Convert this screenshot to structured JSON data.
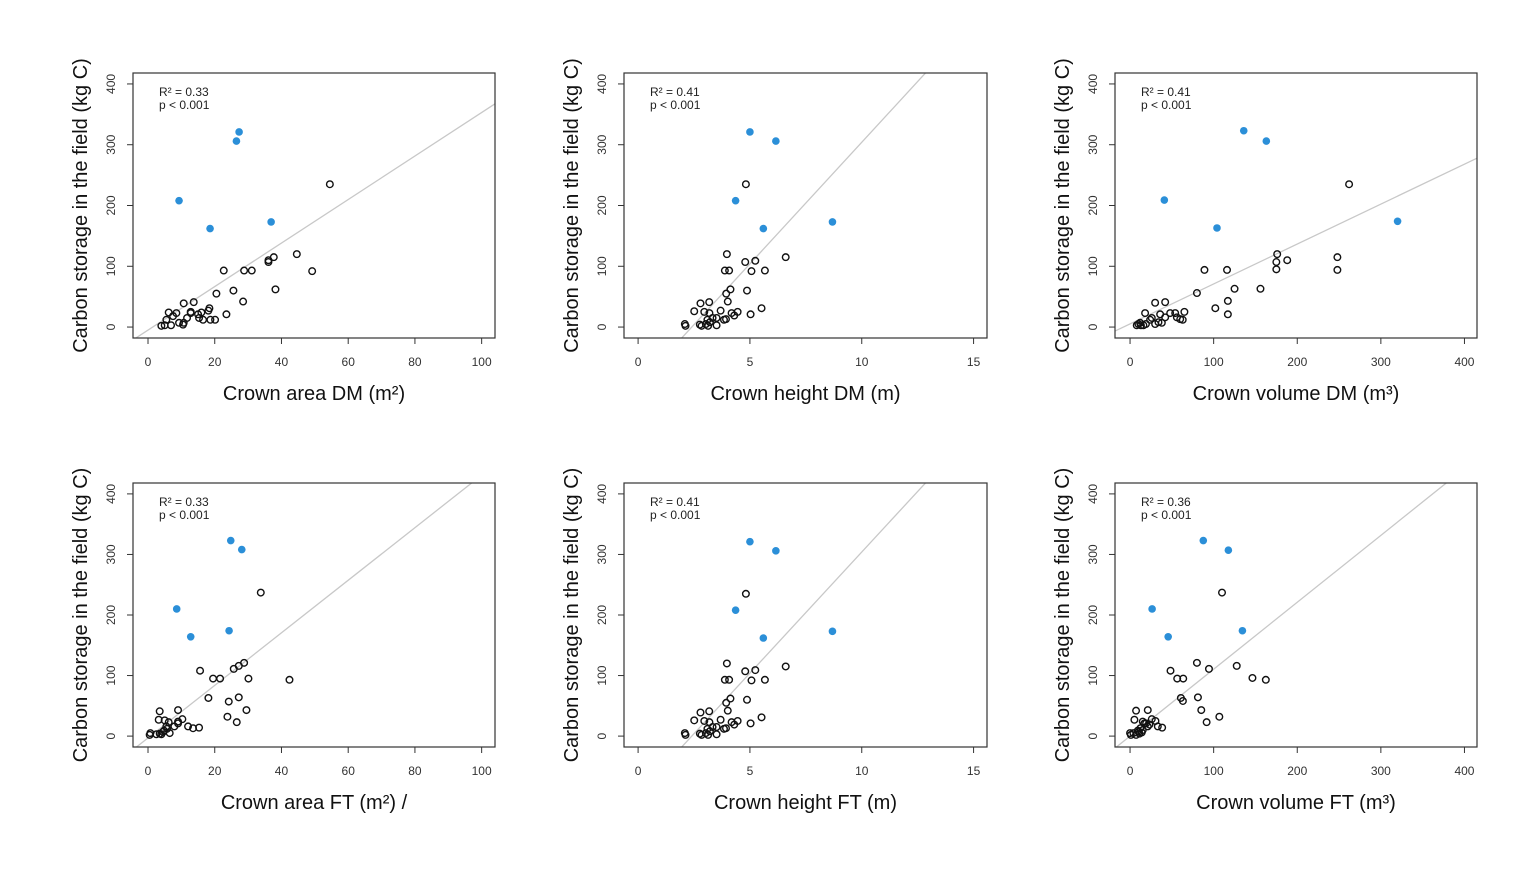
{
  "chart_data": [
    {
      "type": "scatter",
      "xlabel": "Crown area DM (m²)",
      "ylabel": "Carbon storage in the field (kg C)",
      "r2": "R² = 0.33",
      "p": "p < 0.001",
      "xlim": [
        -4.5,
        104
      ],
      "ylim": [
        -18,
        418
      ],
      "xticks": [
        0,
        20,
        40,
        60,
        80,
        100
      ],
      "yticks": [
        0,
        100,
        200,
        300,
        400
      ],
      "fit": {
        "intercept": -5,
        "slope": 3.58
      },
      "highlight_color": "#2b8fd8",
      "highlight_points": [
        [
          27.3,
          321
        ],
        [
          26.5,
          306
        ],
        [
          9.3,
          208
        ],
        [
          18.6,
          162
        ],
        [
          36.9,
          173
        ]
      ],
      "points": [
        [
          54.5,
          235
        ],
        [
          44.6,
          120
        ],
        [
          37.7,
          115
        ],
        [
          36.1,
          110
        ],
        [
          36.1,
          107
        ],
        [
          49.2,
          92
        ],
        [
          22.7,
          93
        ],
        [
          28.8,
          93
        ],
        [
          31.1,
          93
        ],
        [
          38.2,
          62
        ],
        [
          25.6,
          60
        ],
        [
          20.5,
          55
        ],
        [
          28.5,
          42
        ],
        [
          10.7,
          39
        ],
        [
          13.7,
          41
        ],
        [
          23.5,
          21
        ],
        [
          18.4,
          31
        ],
        [
          18.1,
          27
        ],
        [
          16,
          24
        ],
        [
          15,
          21
        ],
        [
          12.8,
          25
        ],
        [
          12.8,
          23
        ],
        [
          15.3,
          15
        ],
        [
          16.5,
          12
        ],
        [
          18.7,
          12
        ],
        [
          20.1,
          12
        ],
        [
          8.5,
          23
        ],
        [
          6.2,
          24
        ],
        [
          11.7,
          15
        ],
        [
          10.5,
          4
        ],
        [
          10.7,
          7
        ],
        [
          9.3,
          7
        ],
        [
          6.9,
          3
        ],
        [
          5.5,
          12
        ],
        [
          5,
          3
        ],
        [
          4,
          2
        ],
        [
          7.5,
          18
        ]
      ]
    },
    {
      "type": "scatter",
      "xlabel": "Crown height  DM (m)",
      "ylabel": "Carbon storage in the field (kg C)",
      "r2": "R² = 0.41",
      "p": "p < 0.001",
      "xlim": [
        -0.63,
        15.6
      ],
      "ylim": [
        -18,
        418
      ],
      "xticks": [
        0,
        5,
        10,
        15
      ],
      "yticks": [
        0,
        100,
        200,
        300,
        400
      ],
      "fit": {
        "intercept": -96,
        "slope": 40
      },
      "highlight_color": "#2b8fd8",
      "highlight_points": [
        [
          5.0,
          321
        ],
        [
          6.16,
          306
        ],
        [
          4.36,
          208
        ],
        [
          5.6,
          162
        ],
        [
          8.69,
          173
        ]
      ],
      "points": [
        [
          4.82,
          235
        ],
        [
          3.97,
          120
        ],
        [
          6.6,
          115
        ],
        [
          4.79,
          107
        ],
        [
          5.24,
          109
        ],
        [
          3.88,
          93
        ],
        [
          4.07,
          93
        ],
        [
          5.07,
          92
        ],
        [
          5.67,
          93
        ],
        [
          4.13,
          62
        ],
        [
          4.87,
          60
        ],
        [
          3.94,
          55
        ],
        [
          4.01,
          42
        ],
        [
          2.79,
          39
        ],
        [
          3.18,
          41
        ],
        [
          2.51,
          26
        ],
        [
          2.96,
          25
        ],
        [
          3.19,
          23
        ],
        [
          3.69,
          27
        ],
        [
          4.18,
          23
        ],
        [
          4.3,
          19
        ],
        [
          4.45,
          25
        ],
        [
          5.52,
          31
        ],
        [
          5.03,
          21
        ],
        [
          3.51,
          15
        ],
        [
          3.84,
          12
        ],
        [
          3.1,
          12
        ],
        [
          3.33,
          15
        ],
        [
          3.51,
          3
        ],
        [
          3.13,
          2
        ],
        [
          2.76,
          4
        ],
        [
          2.84,
          2
        ],
        [
          2.12,
          2
        ],
        [
          2.09,
          5
        ],
        [
          3.03,
          5
        ],
        [
          3.21,
          8
        ],
        [
          3.93,
          13
        ]
      ]
    },
    {
      "type": "scatter",
      "xlabel": "Crown volume DM (m³)",
      "ylabel": "Carbon storage in the field (kg C)",
      "r2": "R² = 0.41",
      "p": "p < 0.001",
      "xlim": [
        -18,
        415
      ],
      "ylim": [
        -18,
        418
      ],
      "xticks": [
        0,
        100,
        200,
        300,
        400
      ],
      "yticks": [
        0,
        100,
        200,
        300,
        400
      ],
      "fit": {
        "intercept": 5.2,
        "slope": 0.657
      },
      "highlight_color": "#2b8fd8",
      "highlight_points": [
        [
          136,
          323
        ],
        [
          163,
          306
        ],
        [
          41,
          209
        ],
        [
          104,
          163
        ],
        [
          320,
          174
        ]
      ],
      "points": [
        [
          262,
          235
        ],
        [
          176,
          120
        ],
        [
          188,
          110
        ],
        [
          175,
          107
        ],
        [
          248,
          115
        ],
        [
          248,
          94
        ],
        [
          175,
          95
        ],
        [
          89,
          94
        ],
        [
          116,
          94
        ],
        [
          156,
          63
        ],
        [
          125,
          63
        ],
        [
          80,
          56
        ],
        [
          42,
          41
        ],
        [
          30,
          40
        ],
        [
          117,
          43
        ],
        [
          102,
          31
        ],
        [
          117,
          21
        ],
        [
          65,
          25
        ],
        [
          54,
          23
        ],
        [
          48,
          23
        ],
        [
          18,
          23
        ],
        [
          36,
          21
        ],
        [
          56,
          16
        ],
        [
          60,
          13
        ],
        [
          63,
          12
        ],
        [
          24,
          12
        ],
        [
          34,
          8
        ],
        [
          38,
          7
        ],
        [
          12,
          7
        ],
        [
          10,
          5
        ],
        [
          13,
          3
        ],
        [
          16,
          3
        ],
        [
          8,
          3
        ],
        [
          26,
          15
        ],
        [
          19,
          5
        ],
        [
          30,
          5
        ],
        [
          42,
          16
        ]
      ]
    },
    {
      "type": "scatter",
      "xlabel": "Crown area FT (m²) /",
      "ylabel": "Carbon storage in the field (kg C)",
      "r2": "R² = 0.33",
      "p": "p < 0.001",
      "xlim": [
        -4.5,
        104
      ],
      "ylim": [
        -18,
        418
      ],
      "xticks": [
        0,
        20,
        40,
        60,
        80,
        100
      ],
      "yticks": [
        0,
        100,
        200,
        300,
        400
      ],
      "fit": {
        "intercept": -3,
        "slope": 4.34
      },
      "highlight_color": "#2b8fd8",
      "highlight_points": [
        [
          24.8,
          323
        ],
        [
          28.1,
          308
        ],
        [
          8.6,
          210
        ],
        [
          12.8,
          164
        ],
        [
          24.3,
          174
        ]
      ],
      "points": [
        [
          33.8,
          237
        ],
        [
          28.8,
          121
        ],
        [
          27.2,
          116
        ],
        [
          25.7,
          111
        ],
        [
          15.6,
          108
        ],
        [
          19.5,
          95
        ],
        [
          21.6,
          95
        ],
        [
          30.1,
          95
        ],
        [
          42.4,
          93
        ],
        [
          18.1,
          63
        ],
        [
          24.2,
          57
        ],
        [
          27.2,
          64
        ],
        [
          29.5,
          43
        ],
        [
          3.5,
          41
        ],
        [
          9,
          43
        ],
        [
          23.8,
          32
        ],
        [
          26.6,
          23
        ],
        [
          3.2,
          27
        ],
        [
          5,
          26
        ],
        [
          6.2,
          23
        ],
        [
          9,
          24
        ],
        [
          10.3,
          28
        ],
        [
          7.9,
          16
        ],
        [
          12,
          16
        ],
        [
          13.5,
          13
        ],
        [
          15.3,
          14
        ],
        [
          5.5,
          16
        ],
        [
          4.8,
          9
        ],
        [
          6.5,
          5
        ],
        [
          4,
          3
        ],
        [
          2.5,
          3
        ],
        [
          0.7,
          5
        ],
        [
          0.5,
          2
        ],
        [
          5.7,
          12
        ],
        [
          4.5,
          7
        ],
        [
          9,
          21
        ],
        [
          3.5,
          4
        ]
      ]
    },
    {
      "type": "scatter",
      "xlabel": "Crown height FT (m)",
      "ylabel": "Carbon storage in the field (kg C)",
      "r2": "R² = 0.41",
      "p": "p < 0.001",
      "xlim": [
        -0.63,
        15.6
      ],
      "ylim": [
        -18,
        418
      ],
      "xticks": [
        0,
        5,
        10,
        15
      ],
      "yticks": [
        0,
        100,
        200,
        300,
        400
      ],
      "fit": {
        "intercept": -96,
        "slope": 40
      },
      "highlight_color": "#2b8fd8",
      "highlight_points": [
        [
          5.0,
          321
        ],
        [
          6.16,
          306
        ],
        [
          4.36,
          208
        ],
        [
          5.6,
          162
        ],
        [
          8.69,
          173
        ]
      ],
      "points": [
        [
          4.82,
          235
        ],
        [
          3.97,
          120
        ],
        [
          6.6,
          115
        ],
        [
          4.79,
          107
        ],
        [
          5.24,
          109
        ],
        [
          3.88,
          93
        ],
        [
          4.07,
          93
        ],
        [
          5.07,
          92
        ],
        [
          5.67,
          93
        ],
        [
          4.13,
          62
        ],
        [
          4.87,
          60
        ],
        [
          3.94,
          55
        ],
        [
          4.01,
          42
        ],
        [
          2.79,
          39
        ],
        [
          3.18,
          41
        ],
        [
          2.51,
          26
        ],
        [
          2.96,
          25
        ],
        [
          3.19,
          23
        ],
        [
          3.69,
          27
        ],
        [
          4.18,
          23
        ],
        [
          4.3,
          19
        ],
        [
          4.45,
          25
        ],
        [
          5.52,
          31
        ],
        [
          5.03,
          21
        ],
        [
          3.51,
          15
        ],
        [
          3.84,
          12
        ],
        [
          3.1,
          12
        ],
        [
          3.33,
          15
        ],
        [
          3.51,
          3
        ],
        [
          3.13,
          2
        ],
        [
          2.76,
          4
        ],
        [
          2.84,
          2
        ],
        [
          2.12,
          2
        ],
        [
          2.09,
          5
        ],
        [
          3.03,
          5
        ],
        [
          3.21,
          8
        ],
        [
          3.93,
          13
        ]
      ]
    },
    {
      "type": "scatter",
      "xlabel": "Crown volume FT (m³)",
      "ylabel": "Carbon storage in the field (kg C)",
      "r2": "R² = 0.36",
      "p": "p < 0.001",
      "xlim": [
        -18,
        415
      ],
      "ylim": [
        -18,
        418
      ],
      "xticks": [
        0,
        100,
        200,
        300,
        400
      ],
      "yticks": [
        0,
        100,
        200,
        300,
        400
      ],
      "fit": {
        "intercept": 0,
        "slope": 1.105
      },
      "highlight_color": "#2b8fd8",
      "highlight_points": [
        [
          87.6,
          323
        ],
        [
          117.6,
          307
        ],
        [
          26.4,
          210
        ],
        [
          45.6,
          164
        ],
        [
          134.4,
          174
        ]
      ],
      "points": [
        [
          110,
          237
        ],
        [
          80,
          121
        ],
        [
          127.6,
          116
        ],
        [
          94.4,
          111
        ],
        [
          48.4,
          108
        ],
        [
          56.4,
          95
        ],
        [
          63.6,
          95
        ],
        [
          146.4,
          96
        ],
        [
          162.4,
          93
        ],
        [
          60.8,
          63
        ],
        [
          63.2,
          58
        ],
        [
          81.2,
          64
        ],
        [
          85.2,
          43
        ],
        [
          106.8,
          32
        ],
        [
          91.6,
          23
        ],
        [
          7.2,
          42
        ],
        [
          21.2,
          43
        ],
        [
          5.2,
          27
        ],
        [
          15.2,
          24
        ],
        [
          26,
          28
        ],
        [
          30.4,
          25
        ],
        [
          33.2,
          16
        ],
        [
          38.4,
          14
        ],
        [
          19.2,
          21
        ],
        [
          12.4,
          13
        ],
        [
          15.2,
          10
        ],
        [
          21.2,
          16
        ],
        [
          10.4,
          7
        ],
        [
          14,
          6
        ],
        [
          0,
          5
        ],
        [
          1,
          2
        ],
        [
          7.2,
          2
        ],
        [
          11.2,
          4
        ],
        [
          4,
          5
        ],
        [
          17.2,
          21
        ],
        [
          23.2,
          19
        ],
        [
          9.2,
          9
        ]
      ]
    }
  ]
}
